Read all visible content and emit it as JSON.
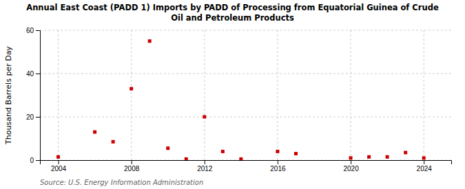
{
  "chart_data": {
    "type": "scatter",
    "title": "Annual East Coast (PADD 1) Imports by PADD of Processing from Equatorial Guinea of Crude\nOil and Petroleum Products",
    "ylabel": "Thousand Barrels per Day",
    "source": "Source: U.S. Energy Information Administration",
    "x": [
      2004,
      2006,
      2007,
      2008,
      2009,
      2010,
      2011,
      2012,
      2013,
      2014,
      2016,
      2017,
      2020,
      2021,
      2022,
      2023,
      2024
    ],
    "values": [
      1.5,
      13,
      8.5,
      33,
      55,
      5.5,
      0.5,
      20,
      4,
      0.5,
      4,
      3,
      1,
      1.5,
      1.5,
      3.5,
      1
    ],
    "color": "#cc0000",
    "marker": "square",
    "xlim": [
      2003.0,
      2025.5
    ],
    "ylim": [
      0,
      60
    ],
    "xticks": [
      2004,
      2008,
      2012,
      2016,
      2020,
      2024
    ],
    "yticks": [
      0,
      20,
      40,
      60
    ],
    "grid": true
  }
}
